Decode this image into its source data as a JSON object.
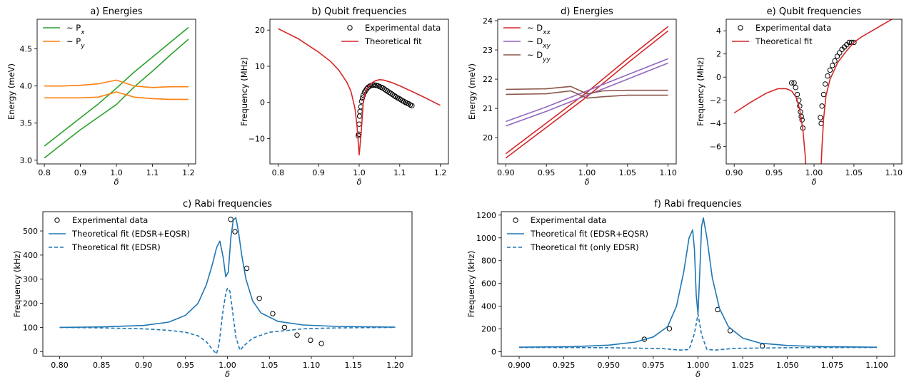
{
  "chart_data": [
    {
      "id": "a",
      "type": "line",
      "title": "a) Energies",
      "xlabel": "δ",
      "ylabel": "Energy (meV)",
      "xlim": [
        0.78,
        1.22
      ],
      "ylim": [
        2.95,
        4.9
      ],
      "xticks": [
        0.8,
        0.9,
        1.0,
        1.1,
        1.2
      ],
      "yticks": [
        3.0,
        3.5,
        4.0,
        4.5
      ],
      "xtick_labels": [
        "0.8",
        "0.9",
        "1.0",
        "1.1",
        "1.2"
      ],
      "ytick_labels": [
        "3.0",
        "3.5",
        "4.0",
        "4.5"
      ],
      "legend_position": "top-left",
      "series": [
        {
          "name": "~ P",
          "sub": "x",
          "color": "#2ca02c",
          "style": "solid",
          "x": [
            0.8,
            0.85,
            0.9,
            0.95,
            1.0,
            1.05,
            1.1,
            1.15,
            1.2
          ],
          "y": [
            3.19,
            3.38,
            3.57,
            3.76,
            3.97,
            4.19,
            4.39,
            4.59,
            4.79
          ]
        },
        {
          "name": "",
          "color": "#2ca02c",
          "style": "solid",
          "x": [
            0.8,
            0.85,
            0.9,
            0.95,
            1.0,
            1.05,
            1.1,
            1.15,
            1.2
          ],
          "y": [
            3.03,
            3.22,
            3.41,
            3.58,
            3.75,
            3.99,
            4.2,
            4.42,
            4.63
          ]
        },
        {
          "name": "~ P",
          "sub": "y",
          "color": "#ff7f0e",
          "style": "solid",
          "x": [
            0.8,
            0.85,
            0.9,
            0.95,
            1.0,
            1.05,
            1.1,
            1.15,
            1.2
          ],
          "y": [
            4.0,
            4.0,
            4.01,
            4.03,
            4.08,
            4.0,
            3.98,
            3.99,
            3.99
          ]
        },
        {
          "name": "",
          "color": "#ff7f0e",
          "style": "solid",
          "x": [
            0.8,
            0.85,
            0.9,
            0.95,
            1.0,
            1.05,
            1.1,
            1.15,
            1.2
          ],
          "y": [
            3.84,
            3.84,
            3.84,
            3.85,
            3.92,
            3.85,
            3.83,
            3.82,
            3.82
          ]
        }
      ]
    },
    {
      "id": "b",
      "type": "line",
      "title": "b) Qubit frequencies",
      "xlabel": "δ",
      "ylabel": "Frequency (MHz)",
      "xlim": [
        0.78,
        1.22
      ],
      "ylim": [
        -17,
        23
      ],
      "xticks": [
        0.8,
        0.9,
        1.0,
        1.1,
        1.2
      ],
      "yticks": [
        -10,
        0,
        10,
        20
      ],
      "xtick_labels": [
        "0.8",
        "0.9",
        "1.0",
        "1.1",
        "1.2"
      ],
      "ytick_labels": [
        "−10",
        "0",
        "10",
        "20"
      ],
      "legend_position": "top-right",
      "series": [
        {
          "name": "Experimental data",
          "type": "scatter",
          "color": "#000000",
          "x": [
            0.998,
            0.999,
            1.0,
            1.001,
            1.002,
            1.004,
            1.006,
            1.008,
            1.01,
            1.013,
            1.016,
            1.019,
            1.022,
            1.026,
            1.03,
            1.034,
            1.038,
            1.042,
            1.046,
            1.05,
            1.054,
            1.058,
            1.062,
            1.066,
            1.07,
            1.074,
            1.078,
            1.082,
            1.086,
            1.09,
            1.094,
            1.098,
            1.102,
            1.106,
            1.11,
            1.114,
            1.118,
            1.122,
            1.126,
            1.13
          ],
          "y": [
            -9.2,
            -8.8,
            -6,
            -3.8,
            -2.5,
            -1.2,
            0.3,
            1.2,
            2,
            2.8,
            3.3,
            3.8,
            4.2,
            4.5,
            4.7,
            4.8,
            4.8,
            4.7,
            4.6,
            4.4,
            4.2,
            4,
            3.7,
            3.4,
            3.1,
            2.8,
            2.5,
            2.2,
            1.9,
            1.6,
            1.3,
            1.1,
            0.8,
            0.5,
            0.3,
            0,
            -0.2,
            -0.4,
            -0.7,
            -0.9
          ]
        },
        {
          "name": "Theoretical fit",
          "color": "#d62728",
          "style": "solid",
          "x": [
            0.8,
            0.85,
            0.9,
            0.93,
            0.95,
            0.97,
            0.98,
            0.99,
            0.995,
            1.0,
            1.005,
            1.01,
            1.015,
            1.02,
            1.03,
            1.04,
            1.05,
            1.06,
            1.08,
            1.1,
            1.15,
            1.2
          ],
          "y": [
            20.4,
            17.6,
            13.9,
            11.3,
            8.9,
            5.5,
            3.0,
            -1.8,
            -7,
            -14.5,
            -8.5,
            0,
            2.8,
            4.0,
            5.3,
            6.0,
            6.3,
            6.2,
            5.5,
            4.6,
            2.0,
            -0.8
          ]
        }
      ]
    },
    {
      "id": "c",
      "type": "line",
      "title": "c) Rabi frequencies",
      "xlabel": "δ",
      "ylabel": "Frequency (kHz)",
      "xlim": [
        0.78,
        1.22
      ],
      "ylim": [
        -20,
        580
      ],
      "xticks": [
        0.8,
        0.85,
        0.9,
        0.95,
        1.0,
        1.05,
        1.1,
        1.15,
        1.2
      ],
      "yticks": [
        0,
        100,
        200,
        300,
        400,
        500
      ],
      "xtick_labels": [
        "0.80",
        "0.85",
        "0.90",
        "0.95",
        "1.00",
        "1.05",
        "1.10",
        "1.15",
        "1.20"
      ],
      "ytick_labels": [
        "0",
        "100",
        "200",
        "300",
        "400",
        "500"
      ],
      "legend_position": "top-left",
      "series": [
        {
          "name": "Experimental data",
          "type": "scatter",
          "color": "#000000",
          "x": [
            1.004,
            1.009,
            1.023,
            1.038,
            1.054,
            1.068,
            1.083,
            1.099,
            1.112
          ],
          "y": [
            548,
            497,
            345,
            220,
            157,
            100,
            68,
            47,
            33
          ]
        },
        {
          "name": "Theoretical fit (EDSR+EQSR)",
          "color": "#1f77b4",
          "style": "solid",
          "x": [
            0.8,
            0.85,
            0.9,
            0.93,
            0.95,
            0.965,
            0.975,
            0.982,
            0.987,
            0.991,
            0.995,
            0.998,
            1.001,
            1.004,
            1.007,
            1.01,
            1.013,
            1.017,
            1.022,
            1.03,
            1.04,
            1.06,
            1.09,
            1.13,
            1.2
          ],
          "y": [
            100,
            102,
            108,
            122,
            150,
            200,
            278,
            360,
            430,
            458,
            390,
            310,
            330,
            470,
            545,
            555,
            500,
            400,
            300,
            210,
            160,
            125,
            110,
            104,
            101
          ]
        },
        {
          "name": "Theoretical fit (EDSR)",
          "color": "#1f77b4",
          "style": "dashed",
          "x": [
            0.8,
            0.85,
            0.9,
            0.93,
            0.95,
            0.965,
            0.975,
            0.982,
            0.987,
            0.99,
            0.994,
            0.998,
            1.0,
            1.003,
            1.006,
            1.01,
            1.015,
            1.02,
            1.03,
            1.05,
            1.09,
            1.13,
            1.2
          ],
          "y": [
            100,
            98,
            94,
            88,
            80,
            65,
            40,
            10,
            -10,
            30,
            150,
            240,
            262,
            250,
            170,
            60,
            5,
            25,
            55,
            80,
            94,
            98,
            100
          ]
        }
      ]
    },
    {
      "id": "d",
      "type": "line",
      "title": "d) Energies",
      "xlabel": "δ",
      "ylabel": "Energy (meV)",
      "xlim": [
        0.89,
        1.11
      ],
      "ylim": [
        19.1,
        24.05
      ],
      "xticks": [
        0.9,
        0.95,
        1.0,
        1.05,
        1.1
      ],
      "yticks": [
        20,
        21,
        22,
        23,
        24
      ],
      "xtick_labels": [
        "0.90",
        "0.95",
        "1.00",
        "1.05",
        "1.10"
      ],
      "ytick_labels": [
        "20",
        "21",
        "22",
        "23",
        "24"
      ],
      "legend_position": "top-left",
      "series": [
        {
          "name": "~ D",
          "sub": "xx",
          "color": "#d62728",
          "style": "solid",
          "x": [
            0.9,
            0.95,
            1.0,
            1.05,
            1.1
          ],
          "y": [
            19.45,
            20.5,
            21.55,
            22.7,
            23.8
          ]
        },
        {
          "name": "",
          "color": "#d62728",
          "style": "solid",
          "x": [
            0.9,
            0.95,
            1.0,
            1.05,
            1.1
          ],
          "y": [
            19.3,
            20.35,
            21.4,
            22.55,
            23.65
          ]
        },
        {
          "name": "~ D",
          "sub": "xy",
          "color": "#9467bd",
          "style": "solid",
          "x": [
            0.9,
            0.95,
            1.0,
            1.05,
            1.1
          ],
          "y": [
            20.55,
            21.05,
            21.6,
            22.15,
            22.7
          ]
        },
        {
          "name": "",
          "color": "#9467bd",
          "style": "solid",
          "x": [
            0.9,
            0.95,
            1.0,
            1.05,
            1.1
          ],
          "y": [
            20.4,
            20.9,
            21.45,
            22.0,
            22.55
          ]
        },
        {
          "name": "~ D",
          "sub": "yy",
          "color": "#8c564b",
          "style": "solid",
          "x": [
            0.9,
            0.95,
            0.98,
            1.0,
            1.02,
            1.05,
            1.1
          ],
          "y": [
            21.65,
            21.67,
            21.75,
            21.5,
            21.6,
            21.62,
            21.62
          ]
        },
        {
          "name": "",
          "color": "#8c564b",
          "style": "solid",
          "x": [
            0.9,
            0.95,
            0.98,
            1.0,
            1.02,
            1.05,
            1.1
          ],
          "y": [
            21.48,
            21.5,
            21.6,
            21.35,
            21.4,
            21.45,
            21.45
          ]
        }
      ]
    },
    {
      "id": "e",
      "type": "line",
      "title": "e) Qubit frequencies",
      "xlabel": "δ",
      "ylabel": "Frequency (MHz)",
      "xlim": [
        0.89,
        1.11
      ],
      "ylim": [
        -7.5,
        5.0
      ],
      "xticks": [
        0.9,
        0.95,
        1.0,
        1.05,
        1.1
      ],
      "yticks": [
        -6,
        -4,
        -2,
        0,
        2,
        4
      ],
      "xtick_labels": [
        "0.90",
        "0.95",
        "1.00",
        "1.05",
        "1.10"
      ],
      "ytick_labels": [
        "−6",
        "−4",
        "−2",
        "0",
        "2",
        "4"
      ],
      "legend_position": "top-left",
      "series": [
        {
          "name": "Experimental data",
          "type": "scatter",
          "color": "#000000",
          "x": [
            0.972,
            0.975,
            0.977,
            0.979,
            0.981,
            0.982,
            0.983,
            0.984,
            0.985,
            0.986,
            1.008,
            1.009,
            1.01,
            1.012,
            1.014,
            1.017,
            1.02,
            1.023,
            1.026,
            1.029,
            1.032,
            1.035,
            1.038,
            1.041,
            1.044,
            1.047,
            1.05
          ],
          "y": [
            -0.5,
            -0.5,
            -0.9,
            -1.5,
            -2.0,
            -2.5,
            -3.0,
            -3.4,
            -3.7,
            -4.4,
            -3.5,
            -4.0,
            -2.5,
            -1.5,
            -0.6,
            0.1,
            0.6,
            1.0,
            1.4,
            1.8,
            2.1,
            2.4,
            2.6,
            2.8,
            3.0,
            3.0,
            3.0
          ]
        },
        {
          "name": "Theoretical fit",
          "color": "#d62728",
          "style": "solid",
          "x": [
            0.9,
            0.92,
            0.94,
            0.955,
            0.965,
            0.972,
            0.978,
            0.982,
            0.986,
            0.989,
            0.991
          ],
          "y": [
            -3.1,
            -2.2,
            -1.4,
            -1.0,
            -1.0,
            -1.2,
            -1.8,
            -2.8,
            -4.5,
            -6.8,
            -9
          ]
        },
        {
          "name": "",
          "color": "#d62728",
          "style": "solid",
          "x": [
            1.008,
            1.01,
            1.012,
            1.015,
            1.02,
            1.03,
            1.04,
            1.05,
            1.06,
            1.08,
            1.1
          ],
          "y": [
            -9,
            -6,
            -3.6,
            -1.6,
            -0.2,
            1.3,
            2.2,
            3.0,
            3.5,
            4.3,
            5.1
          ]
        }
      ]
    },
    {
      "id": "f",
      "type": "line",
      "title": "f) Rabi frequencies",
      "xlabel": "δ",
      "ylabel": "Frequency (kHz)",
      "xlim": [
        0.89,
        1.11
      ],
      "ylim": [
        -40,
        1230
      ],
      "xticks": [
        0.9,
        0.925,
        0.95,
        0.975,
        1.0,
        1.025,
        1.05,
        1.075,
        1.1
      ],
      "yticks": [
        0,
        200,
        400,
        600,
        800,
        1000,
        1200
      ],
      "xtick_labels": [
        "0.900",
        "0.925",
        "0.950",
        "0.975",
        "1.000",
        "1.025",
        "1.050",
        "1.075",
        "1.100"
      ],
      "ytick_labels": [
        "0",
        "200",
        "400",
        "600",
        "800",
        "1000",
        "1200"
      ],
      "legend_position": "top-left",
      "series": [
        {
          "name": "Experimental data",
          "type": "scatter",
          "color": "#000000",
          "x": [
            0.97,
            0.984,
            1.011,
            1.018,
            1.036
          ],
          "y": [
            110,
            203,
            370,
            185,
            50
          ]
        },
        {
          "name": "Theoretical fit (EDSR+EQSR)",
          "color": "#1f77b4",
          "style": "solid",
          "x": [
            0.9,
            0.93,
            0.95,
            0.965,
            0.975,
            0.983,
            0.988,
            0.992,
            0.995,
            0.997,
            0.998,
            0.999,
            1.0,
            1.001,
            1.002,
            1.003,
            1.005,
            1.008,
            1.012,
            1.017,
            1.025,
            1.035,
            1.05,
            1.07,
            1.1
          ],
          "y": [
            40,
            45,
            58,
            85,
            130,
            220,
            400,
            700,
            1000,
            1070,
            900,
            500,
            330,
            700,
            1100,
            1175,
            1000,
            650,
            380,
            220,
            120,
            75,
            55,
            45,
            40
          ]
        },
        {
          "name": "Theoretical fit (only EDSR)",
          "color": "#1f77b4",
          "style": "dashed",
          "x": [
            0.9,
            0.95,
            0.98,
            0.99,
            0.995,
            0.998,
            1.0,
            1.002,
            1.005,
            1.01,
            1.02,
            1.05,
            1.1
          ],
          "y": [
            38,
            36,
            28,
            15,
            20,
            160,
            330,
            150,
            20,
            15,
            30,
            36,
            38
          ]
        }
      ]
    }
  ]
}
